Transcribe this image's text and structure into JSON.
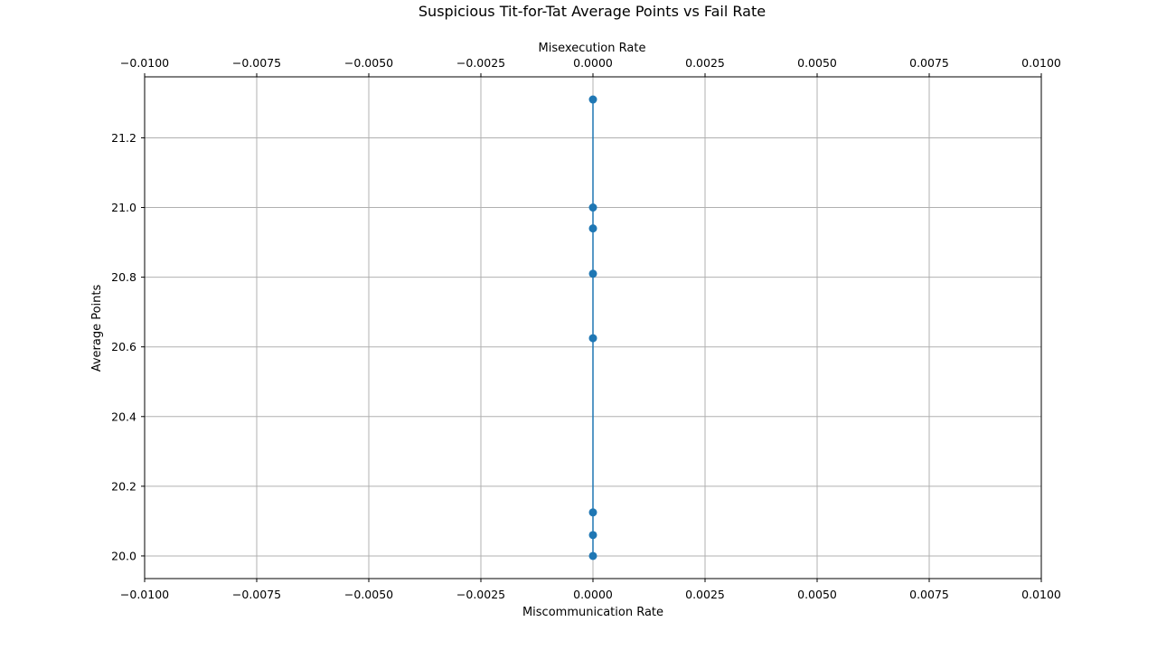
{
  "chart_data": {
    "type": "line",
    "title": "Suspicious Tit-for-Tat Average Points vs Fail Rate",
    "xlabel": "Miscommunication Rate",
    "x2label": "Misexecution Rate",
    "ylabel": "Average Points",
    "xlim": [
      -0.01,
      0.01
    ],
    "ylim": [
      19.935,
      21.375
    ],
    "x_ticks": [
      -0.01,
      -0.0075,
      -0.005,
      -0.0025,
      0.0,
      0.0025,
      0.005,
      0.0075,
      0.01
    ],
    "x_tick_labels": [
      "−0.0100",
      "−0.0075",
      "−0.0050",
      "−0.0025",
      "0.0000",
      "0.0025",
      "0.0050",
      "0.0075",
      "0.0100"
    ],
    "y_ticks": [
      20.0,
      20.2,
      20.4,
      20.6,
      20.8,
      21.0,
      21.2
    ],
    "y_tick_labels": [
      "20.0",
      "20.2",
      "20.4",
      "20.6",
      "20.8",
      "21.0",
      "21.2"
    ],
    "grid": true,
    "series": [
      {
        "color": "#1f77b4",
        "marker": "circle",
        "x": [
          0.0,
          0.0,
          0.0,
          0.0,
          0.0,
          0.0,
          0.0,
          0.0
        ],
        "y": [
          21.31,
          21.0,
          20.94,
          20.81,
          20.625,
          20.125,
          20.06,
          20.0
        ]
      }
    ]
  }
}
